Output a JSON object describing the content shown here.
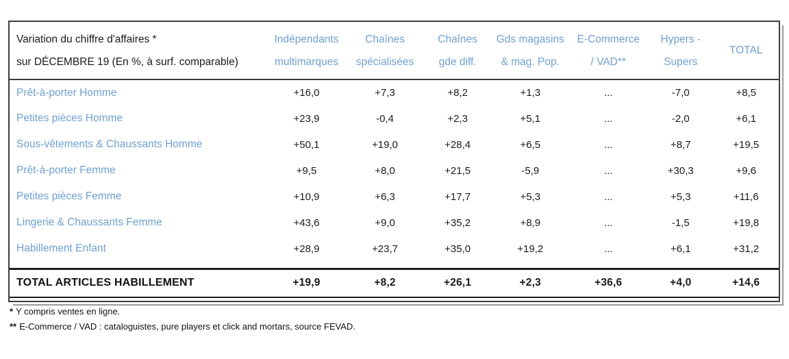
{
  "table": {
    "title_line1": "Variation du chiffre d'affaires *",
    "title_line2": "sur DÉCEMBRE 19 (En %, à surf. comparable)",
    "columns": [
      {
        "line1": "Indépendants",
        "line2": "multimarques"
      },
      {
        "line1": "Chaînes",
        "line2": "spécialisées"
      },
      {
        "line1": "Chaînes",
        "line2": "gde diff."
      },
      {
        "line1": "Gds magasins",
        "line2": "& mag. Pop."
      },
      {
        "line1": "E-Commerce",
        "line2": "/ VAD**"
      },
      {
        "line1": "Hypers -",
        "line2": "Supers"
      },
      {
        "line1": "TOTAL",
        "line2": ""
      }
    ],
    "rows": [
      {
        "label": "Prêt-à-porter Homme",
        "values": [
          "+16,0",
          "+7,3",
          "+8,2",
          "+1,3",
          "...",
          "-7,0",
          "+8,5"
        ]
      },
      {
        "label": "Petites pièces Homme",
        "values": [
          "+23,9",
          "-0,4",
          "+2,3",
          "+5,1",
          "...",
          "-2,0",
          "+6,1"
        ]
      },
      {
        "label": "Sous-vêtements & Chaussants Homme",
        "values": [
          "+50,1",
          "+19,0",
          "+28,4",
          "+6,5",
          "...",
          "+8,7",
          "+19,5"
        ]
      },
      {
        "label": "Prêt-à-porter Femme",
        "values": [
          "+9,5",
          "+8,0",
          "+21,5",
          "-5,9",
          "...",
          "+30,3",
          "+9,6"
        ]
      },
      {
        "label": "Petites pièces Femme",
        "values": [
          "+10,9",
          "+6,3",
          "+17,7",
          "+5,3",
          "...",
          "+5,3",
          "+11,6"
        ]
      },
      {
        "label": "Lingerie & Chaussants Femme",
        "values": [
          "+43,6",
          "+9,0",
          "+35,2",
          "+8,9",
          "...",
          "-1,5",
          "+19,8"
        ]
      },
      {
        "label": "Habillement Enfant",
        "values": [
          "+28,9",
          "+23,7",
          "+35,0",
          "+19,2",
          "...",
          "+6,1",
          "+31,2"
        ]
      }
    ],
    "total": {
      "label": "TOTAL ARTICLES HABILLEMENT",
      "values": [
        "+19,9",
        "+8,2",
        "+26,1",
        "+2,3",
        "+36,6",
        "+4,0",
        "+14,6"
      ]
    },
    "footnotes": [
      {
        "marker": "*",
        "text": "Y compris ventes en ligne."
      },
      {
        "marker": "**",
        "text": "E-Commerce / VAD : cataloguistes, pure players et click and mortars, source FEVAD."
      }
    ],
    "colors": {
      "accent_blue": "#6FA0D6",
      "text": "#1a1a1a",
      "border": "#3c3c3c",
      "shadow": "#9a9a9a"
    }
  }
}
